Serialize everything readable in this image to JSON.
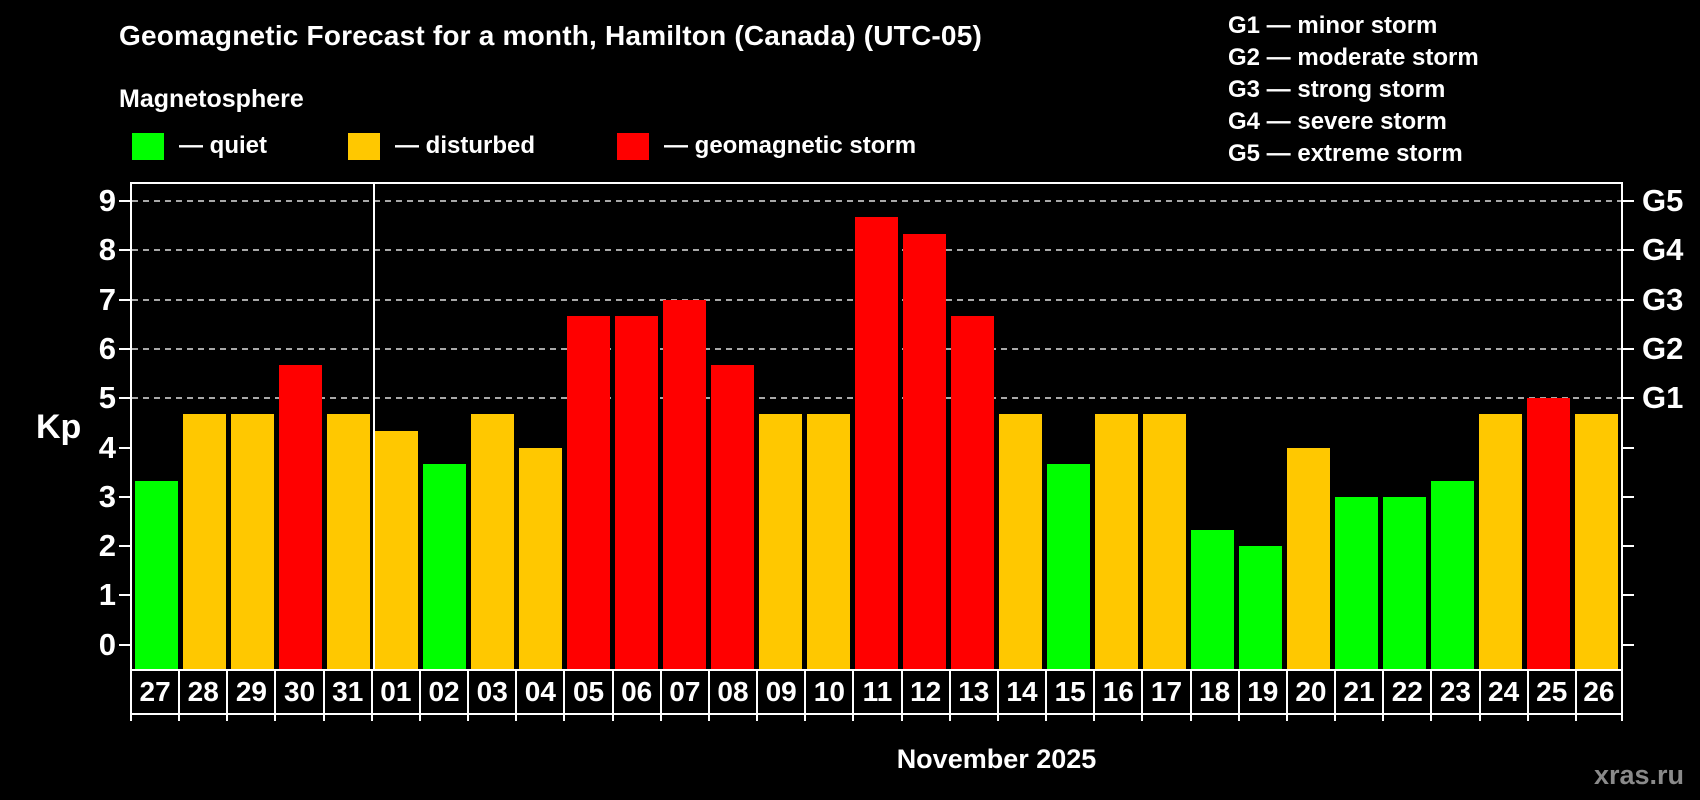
{
  "header": {
    "title": "Geomagnetic Forecast for a month, Hamilton (Canada) (UTC-05)",
    "subtitle": "Magnetosphere",
    "legend": [
      {
        "status": "quiet",
        "label": "— quiet"
      },
      {
        "status": "disturbed",
        "label": "— disturbed"
      },
      {
        "status": "storm",
        "label": "— geomagnetic storm"
      }
    ],
    "storm_scale_legend": [
      "G1 — minor storm",
      "G2 — moderate storm",
      "G3 — strong storm",
      "G4 — severe storm",
      "G5 — extreme storm"
    ]
  },
  "chart_data": {
    "type": "bar",
    "title": "Geomagnetic Forecast for a month, Hamilton (Canada) (UTC-05)",
    "xlabel": "November 2025",
    "ylabel": "Kp",
    "ylim": [
      0,
      9
    ],
    "grid": "dashed horizontal at Kp 5-9 only",
    "legend_position": "top",
    "y_ticks": [
      0,
      1,
      2,
      3,
      4,
      5,
      6,
      7,
      8,
      9
    ],
    "right_axis_labels": [
      {
        "label": "G1",
        "kp": 5
      },
      {
        "label": "G2",
        "kp": 6
      },
      {
        "label": "G3",
        "kp": 7
      },
      {
        "label": "G4",
        "kp": 8
      },
      {
        "label": "G5",
        "kp": 9
      }
    ],
    "grid_levels": [
      5,
      6,
      7,
      8,
      9
    ],
    "categories": [
      "27",
      "28",
      "29",
      "30",
      "31",
      "01",
      "02",
      "03",
      "04",
      "05",
      "06",
      "07",
      "08",
      "09",
      "10",
      "11",
      "12",
      "13",
      "14",
      "15",
      "16",
      "17",
      "18",
      "19",
      "20",
      "21",
      "22",
      "23",
      "24",
      "25",
      "26"
    ],
    "values": [
      3.33,
      4.67,
      4.67,
      5.67,
      4.67,
      4.33,
      3.67,
      4.67,
      4.0,
      6.67,
      6.67,
      7.0,
      5.67,
      4.67,
      4.67,
      8.67,
      8.33,
      6.67,
      4.67,
      3.67,
      4.67,
      4.67,
      2.33,
      2.0,
      4.0,
      3.0,
      3.0,
      3.33,
      4.67,
      5.0,
      4.67
    ],
    "statuses": [
      "quiet",
      "disturbed",
      "disturbed",
      "storm",
      "disturbed",
      "disturbed",
      "quiet",
      "disturbed",
      "disturbed",
      "storm",
      "storm",
      "storm",
      "storm",
      "disturbed",
      "disturbed",
      "storm",
      "storm",
      "storm",
      "disturbed",
      "quiet",
      "disturbed",
      "disturbed",
      "quiet",
      "quiet",
      "disturbed",
      "quiet",
      "quiet",
      "quiet",
      "disturbed",
      "storm",
      "disturbed"
    ],
    "month_separator_after_index": 4,
    "colors": {
      "quiet": "#00ff00",
      "disturbed": "#ffc800",
      "storm": "#ff0000"
    }
  },
  "footer": {
    "month_label": "November 2025",
    "watermark": "xras.ru"
  }
}
